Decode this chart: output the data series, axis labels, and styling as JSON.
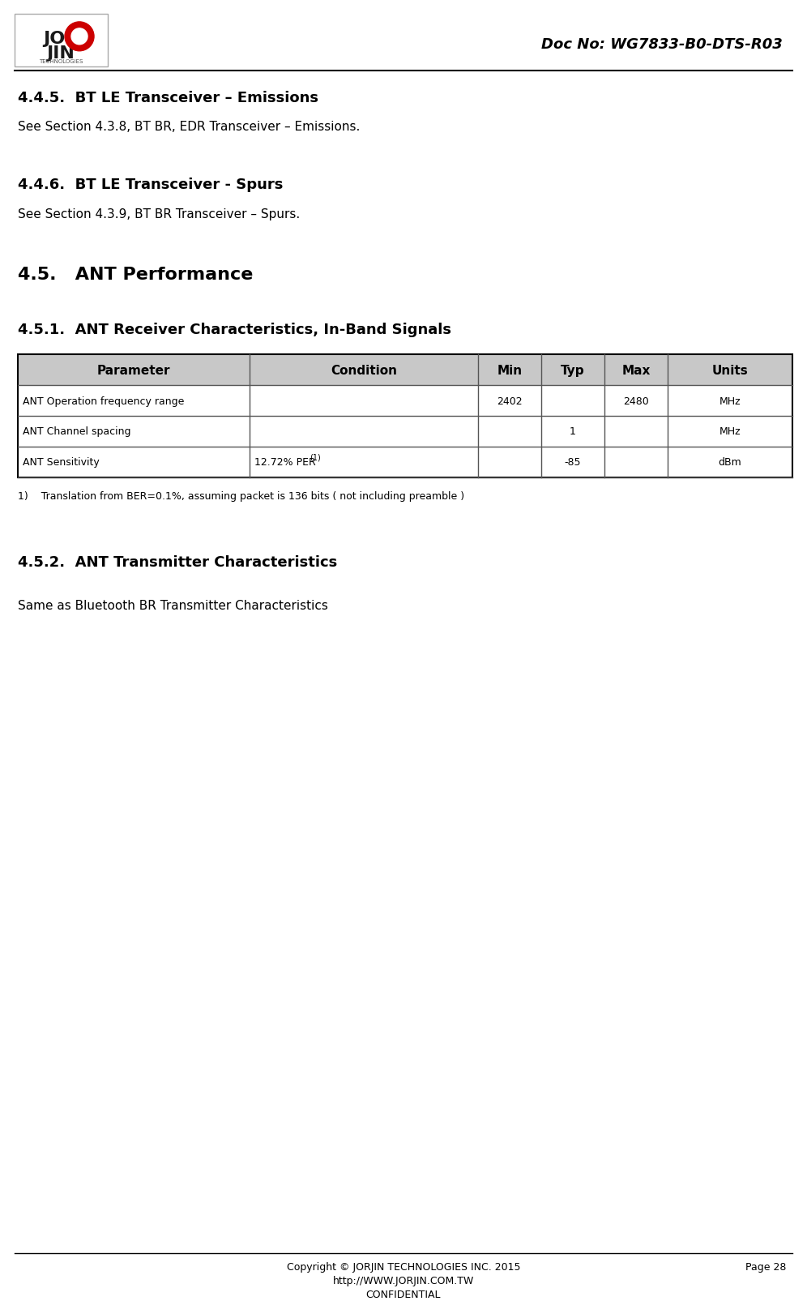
{
  "doc_no": "Doc No: WG7833-B0-DTS-R03",
  "page_num": "Page 28",
  "footer_line1": "Copyright © JORJIN TECHNOLOGIES INC. 2015",
  "footer_line2": "http://WWW.JORJIN.COM.TW",
  "footer_line3": "CONFIDENTIAL",
  "section_445_title": "4.4.5.  BT LE Transceiver – Emissions",
  "section_445_body": "See Section 4.3.8, BT BR, EDR Transceiver – Emissions.",
  "section_446_title": "4.4.6.  BT LE Transceiver - Spurs",
  "section_446_body": "See Section 4.3.9, BT BR Transceiver – Spurs.",
  "section_45_title": "4.5.   ANT Performance",
  "section_451_title": "4.5.1.  ANT Receiver Characteristics, In-Band Signals",
  "table_headers": [
    "Parameter",
    "Condition",
    "Min",
    "Typ",
    "Max",
    "Units"
  ],
  "table_rows": [
    [
      "ANT Operation frequency range",
      "",
      "2402",
      "",
      "2480",
      "MHz"
    ],
    [
      "ANT Channel spacing",
      "",
      "",
      "1",
      "",
      "MHz"
    ],
    [
      "ANT Sensitivity",
      "12.72% PER (1)",
      "",
      "-85",
      "",
      "dBm"
    ]
  ],
  "table_footnote": "1)    Translation from BER=0.1%, assuming packet is 136 bits ( not including preamble )",
  "section_452_title": "4.5.2.  ANT Transmitter Characteristics",
  "section_452_body": "Same as Bluetooth BR Transmitter Characteristics",
  "bg_color": "#ffffff",
  "header_bg": "#cccccc",
  "table_border": "#000000",
  "text_color": "#000000",
  "header_text_color": "#000000"
}
